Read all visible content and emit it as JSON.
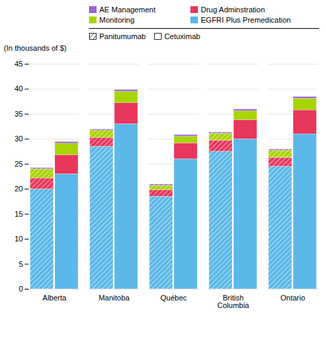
{
  "chart_data": {
    "type": "bar",
    "stacked": true,
    "categories": [
      "Alberta",
      "Manitoba",
      "Québec",
      "British\nColumbia",
      "Ontario"
    ],
    "ylabel": "(In thousands of $)",
    "ylim": [
      0,
      45
    ],
    "yticks": [
      0,
      5,
      10,
      15,
      20,
      25,
      30,
      35,
      40,
      45
    ],
    "grid": true,
    "groups": [
      {
        "name": "Panitumumab",
        "series": [
          {
            "name": "EGFRI Plus Premedication",
            "color": "#5BB8E8",
            "values": [
              20.0,
              28.5,
              18.5,
              27.5,
              24.5
            ]
          },
          {
            "name": "Drug Adminstration",
            "color": "#E8365D",
            "values": [
              2.2,
              1.8,
              1.3,
              2.2,
              1.8
            ]
          },
          {
            "name": "Monitoring",
            "color": "#A8D400",
            "values": [
              1.8,
              1.4,
              0.9,
              1.4,
              1.4
            ]
          },
          {
            "name": "AE Management",
            "color": "#9966CC",
            "values": [
              0.25,
              0.25,
              0.25,
              0.25,
              0.25
            ]
          }
        ]
      },
      {
        "name": "Cetuximab",
        "series": [
          {
            "name": "EGFRI Plus Premedication",
            "color": "#5BB8E8",
            "values": [
              23.0,
              33.0,
              26.0,
              30.0,
              31.0
            ]
          },
          {
            "name": "Drug Adminstration",
            "color": "#E8365D",
            "values": [
              3.8,
              4.2,
              3.2,
              3.8,
              4.8
            ]
          },
          {
            "name": "Monitoring",
            "color": "#A8D400",
            "values": [
              2.3,
              2.3,
              1.3,
              1.8,
              2.3
            ]
          },
          {
            "name": "AE Management",
            "color": "#9966CC",
            "values": [
              0.35,
              0.35,
              0.35,
              0.35,
              0.35
            ]
          }
        ]
      }
    ]
  }
}
